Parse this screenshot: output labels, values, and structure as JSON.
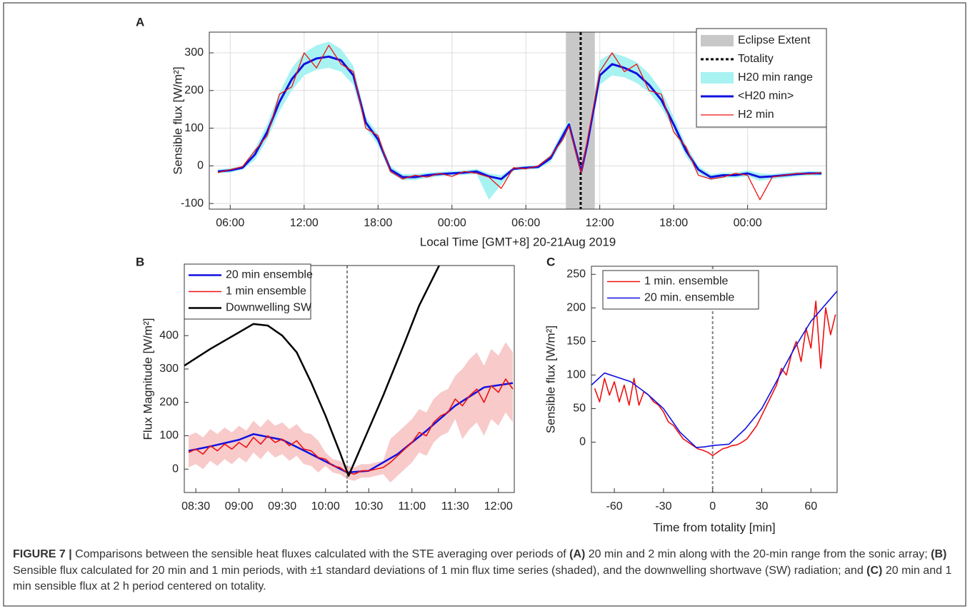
{
  "chart_data": [
    {
      "type": "line",
      "panel_label": "A",
      "ylabel": "Sensible flux [W/m²]",
      "xlabel": "Local Time [GMT+8] 20-21Aug 2019",
      "xlim": [
        4.3,
        54.4
      ],
      "ylim": [
        -115,
        355
      ],
      "grid": true,
      "legend": "upper right",
      "xticks": [
        {
          "value": 6,
          "label": "06:00"
        },
        {
          "value": 12,
          "label": "12:00"
        },
        {
          "value": 18,
          "label": "18:00"
        },
        {
          "value": 24,
          "label": "00:00"
        },
        {
          "value": 30,
          "label": "06:00"
        },
        {
          "value": 36,
          "label": "12:00"
        },
        {
          "value": 42,
          "label": "18:00"
        },
        {
          "value": 48,
          "label": "00:00"
        }
      ],
      "yticks": [
        -100,
        0,
        100,
        200,
        300
      ],
      "series": [
        {
          "name": "Eclipse Extent",
          "kind": "span",
          "color": "#c8c8c8",
          "x": [
            33.25,
            35.6
          ]
        },
        {
          "name": "Totality",
          "kind": "vline",
          "color": "#000000",
          "dashed": true,
          "linewidth": 3,
          "x": [
            34.45
          ]
        },
        {
          "name": "H20 min range",
          "kind": "band",
          "color": "#a9f2f2",
          "x": [
            5,
            6,
            7,
            8,
            9,
            10,
            11,
            12,
            13,
            14,
            15,
            16,
            17,
            18,
            19,
            20,
            21,
            22,
            23,
            24,
            25,
            26,
            27,
            28,
            29,
            30,
            31,
            32,
            33,
            33.5,
            34.5,
            35,
            36,
            37,
            38,
            39,
            40,
            41,
            42,
            43,
            44,
            45,
            46,
            47,
            48,
            49,
            50,
            51,
            52,
            53,
            54
          ],
          "lower": [
            -20,
            -18,
            -10,
            15,
            70,
            145,
            200,
            240,
            255,
            260,
            250,
            215,
            100,
            55,
            -20,
            -38,
            -38,
            -32,
            -28,
            -26,
            -24,
            -22,
            -90,
            -50,
            -12,
            -10,
            -8,
            10,
            65,
            95,
            -20,
            45,
            215,
            240,
            235,
            220,
            195,
            155,
            95,
            25,
            -20,
            -38,
            -32,
            -32,
            -28,
            -40,
            -35,
            -32,
            -28,
            -26,
            -26
          ],
          "upper": [
            -10,
            -6,
            0,
            45,
            110,
            195,
            260,
            300,
            320,
            330,
            310,
            265,
            130,
            85,
            0,
            -22,
            -22,
            -18,
            -16,
            -14,
            -12,
            -8,
            -20,
            -25,
            -4,
            0,
            2,
            30,
            95,
            120,
            -10,
            75,
            280,
            300,
            290,
            275,
            245,
            200,
            130,
            55,
            0,
            -22,
            -18,
            -18,
            -12,
            -20,
            -22,
            -18,
            -16,
            -14,
            -14
          ]
        },
        {
          "name": "<H20 min>",
          "kind": "line",
          "color": "#1010e0",
          "linewidth": 3,
          "x": [
            5,
            6,
            7,
            8,
            9,
            10,
            11,
            12,
            13,
            14,
            15,
            16,
            17,
            18,
            19,
            20,
            21,
            22,
            23,
            24,
            25,
            26,
            27,
            28,
            29,
            30,
            31,
            32,
            33,
            33.5,
            34.5,
            35,
            36,
            37,
            38,
            39,
            40,
            41,
            42,
            43,
            44,
            45,
            46,
            47,
            48,
            49,
            50,
            51,
            52,
            53,
            54
          ],
          "values": [
            -15,
            -12,
            -5,
            30,
            90,
            170,
            230,
            270,
            285,
            290,
            280,
            240,
            115,
            70,
            -10,
            -30,
            -30,
            -25,
            -22,
            -20,
            -18,
            -15,
            -28,
            -35,
            -8,
            -5,
            -3,
            20,
            80,
            110,
            -15,
            60,
            240,
            270,
            260,
            245,
            215,
            175,
            110,
            40,
            -10,
            -30,
            -25,
            -25,
            -20,
            -30,
            -28,
            -25,
            -22,
            -20,
            -20
          ]
        },
        {
          "name": "H2 min",
          "kind": "line",
          "color": "#ee1111",
          "linewidth": 1.3,
          "x": [
            5,
            6,
            7,
            8,
            9,
            10,
            11,
            12,
            13,
            14,
            15,
            16,
            17,
            18,
            19,
            20,
            21,
            22,
            23,
            24,
            25,
            26,
            27,
            28,
            29,
            30,
            31,
            32,
            33,
            33.5,
            34.5,
            35,
            36,
            37,
            38,
            39,
            40,
            41,
            42,
            43,
            44,
            45,
            46,
            47,
            48,
            49,
            50,
            51,
            52,
            53,
            54
          ],
          "values": [
            -18,
            -10,
            -2,
            40,
            80,
            190,
            210,
            300,
            260,
            320,
            270,
            250,
            100,
            80,
            -15,
            -35,
            -25,
            -30,
            -20,
            -28,
            -15,
            -20,
            -30,
            -60,
            -5,
            -8,
            0,
            25,
            70,
            105,
            -18,
            70,
            250,
            300,
            250,
            270,
            200,
            190,
            90,
            50,
            -25,
            -35,
            -30,
            -20,
            -25,
            -90,
            -30,
            -25,
            -20,
            -22,
            -18
          ]
        }
      ]
    },
    {
      "type": "line",
      "panel_label": "B",
      "ylabel": "Flux Magnitude [W/m²]",
      "xlim": [
        502,
        731
      ],
      "ylim": [
        -70,
        610
      ],
      "grid": false,
      "legend": "upper left",
      "xticks": [
        {
          "value": 510,
          "label": "08:30"
        },
        {
          "value": 540,
          "label": "09:00"
        },
        {
          "value": 570,
          "label": "09:30"
        },
        {
          "value": 600,
          "label": "10:00"
        },
        {
          "value": 630,
          "label": "10:30"
        },
        {
          "value": 660,
          "label": "11:00"
        },
        {
          "value": 690,
          "label": "11:30"
        },
        {
          "value": 720,
          "label": "12:00"
        }
      ],
      "yticks": [
        0,
        100,
        200,
        300,
        400
      ],
      "series": [
        {
          "kind": "band",
          "color": "#f8caca",
          "x": [
            505,
            510,
            515,
            520,
            525,
            530,
            535,
            540,
            545,
            550,
            555,
            560,
            565,
            570,
            575,
            580,
            585,
            590,
            595,
            600,
            605,
            610,
            615,
            620,
            625,
            630,
            635,
            640,
            645,
            650,
            655,
            660,
            665,
            670,
            675,
            680,
            685,
            690,
            695,
            700,
            705,
            710,
            715,
            720,
            725,
            730
          ],
          "lower": [
            5,
            15,
            0,
            25,
            10,
            30,
            15,
            35,
            20,
            50,
            30,
            55,
            35,
            45,
            25,
            40,
            15,
            10,
            -10,
            10,
            -10,
            -15,
            -30,
            -35,
            -25,
            -25,
            -20,
            -15,
            -40,
            -20,
            0,
            20,
            50,
            40,
            80,
            100,
            110,
            150,
            90,
            120,
            140,
            100,
            150,
            130,
            170,
            140
          ],
          "upper": [
            100,
            110,
            95,
            120,
            105,
            125,
            110,
            130,
            115,
            145,
            125,
            150,
            130,
            140,
            120,
            135,
            110,
            105,
            85,
            50,
            30,
            25,
            10,
            5,
            15,
            15,
            20,
            25,
            90,
            110,
            130,
            150,
            180,
            170,
            210,
            230,
            240,
            280,
            300,
            330,
            350,
            310,
            360,
            340,
            380,
            350
          ]
        },
        {
          "kind": "vline",
          "color": "#808080",
          "dashed": true,
          "linewidth": 2,
          "x": [
            615
          ]
        },
        {
          "name": "20 min ensemble",
          "kind": "line",
          "color": "#1010e0",
          "linewidth": 2.5,
          "x": [
            505,
            520,
            540,
            550,
            570,
            590,
            615,
            630,
            650,
            670,
            690,
            710,
            730
          ],
          "values": [
            55,
            68,
            88,
            105,
            88,
            45,
            -10,
            -5,
            45,
            115,
            190,
            245,
            258
          ]
        },
        {
          "name": "1 min ensemble",
          "kind": "line",
          "color": "#ee1111",
          "linewidth": 1.6,
          "x": [
            505,
            510,
            515,
            520,
            525,
            530,
            535,
            540,
            545,
            550,
            555,
            560,
            565,
            570,
            575,
            580,
            585,
            590,
            595,
            600,
            605,
            610,
            615,
            620,
            625,
            630,
            635,
            640,
            645,
            650,
            655,
            660,
            665,
            670,
            675,
            680,
            685,
            690,
            695,
            700,
            705,
            710,
            715,
            720,
            725,
            730
          ],
          "values": [
            50,
            60,
            45,
            70,
            55,
            75,
            60,
            80,
            65,
            95,
            75,
            100,
            80,
            90,
            70,
            85,
            60,
            55,
            35,
            30,
            10,
            5,
            -10,
            -15,
            -5,
            -5,
            0,
            5,
            20,
            40,
            60,
            80,
            110,
            100,
            140,
            160,
            170,
            210,
            190,
            220,
            240,
            200,
            250,
            230,
            270,
            240
          ]
        },
        {
          "name": "Downwelling SW",
          "kind": "line",
          "color": "#000000",
          "linewidth": 2.5,
          "x": [
            502,
            520,
            540,
            550,
            560,
            570,
            580,
            590,
            600,
            610,
            616,
            625,
            640,
            655,
            665,
            680
          ],
          "values": [
            310,
            360,
            410,
            435,
            430,
            400,
            350,
            260,
            160,
            50,
            -20,
            70,
            220,
            380,
            490,
            620
          ]
        }
      ]
    },
    {
      "type": "line",
      "panel_label": "C",
      "ylabel": "Sensible flux [W/m²]",
      "xlabel": "Time from totality [min]",
      "xlim": [
        -74,
        76
      ],
      "ylim": [
        -75,
        262
      ],
      "grid": false,
      "legend": "upper left",
      "xticks": [
        -60,
        -30,
        0,
        30,
        60
      ],
      "yticks": [
        0,
        50,
        100,
        150,
        200,
        250
      ],
      "series": [
        {
          "kind": "vline",
          "color": "#808080",
          "dashed": true,
          "linewidth": 2,
          "x": [
            0
          ]
        },
        {
          "name": "1 min. ensemble",
          "kind": "line",
          "color": "#ee1111",
          "linewidth": 1.6,
          "x": [
            -72,
            -69,
            -66,
            -63,
            -60,
            -57,
            -54,
            -51,
            -48,
            -45,
            -42,
            -39,
            -36,
            -33,
            -30,
            -27,
            -24,
            -21,
            -18,
            -15,
            -12,
            -9,
            -6,
            -3,
            0,
            3,
            6,
            9,
            12,
            15,
            18,
            21,
            24,
            27,
            30,
            33,
            36,
            39,
            42,
            45,
            48,
            51,
            54,
            57,
            60,
            63,
            66,
            69,
            72,
            75
          ],
          "values": [
            80,
            60,
            95,
            70,
            90,
            60,
            85,
            55,
            95,
            55,
            75,
            70,
            60,
            55,
            45,
            30,
            25,
            15,
            5,
            0,
            -5,
            -10,
            -12,
            -15,
            -20,
            -15,
            -10,
            -8,
            -5,
            -4,
            0,
            5,
            15,
            25,
            40,
            55,
            70,
            85,
            110,
            100,
            130,
            150,
            120,
            170,
            140,
            210,
            110,
            200,
            160,
            190
          ]
        },
        {
          "name": "20 min. ensemble",
          "kind": "line",
          "color": "#1010e0",
          "linewidth": 1.6,
          "x": [
            -74,
            -66,
            -50,
            -40,
            -30,
            -20,
            -10,
            -5,
            0,
            10,
            20,
            30,
            40,
            50,
            60,
            76
          ],
          "values": [
            85,
            103,
            90,
            72,
            50,
            15,
            -8,
            -7,
            -5,
            -3,
            20,
            50,
            95,
            140,
            180,
            225
          ]
        }
      ]
    }
  ],
  "caption": {
    "segments": [
      {
        "text": "FIGURE 7 |",
        "bold": true
      },
      {
        "text": " Comparisons between the sensible heat fluxes calculated with the STE averaging over periods of ",
        "bold": false
      },
      {
        "text": "(A)",
        "bold": true
      },
      {
        "text": " 20 min and 2 min along with the 20-min range from the sonic array; ",
        "bold": false
      },
      {
        "text": "(B)",
        "bold": true
      },
      {
        "text": " Sensible flux calculated for 20 min and 1 min periods, with ±1 standard deviations of 1 min flux time series (shaded), and the downwelling shortwave (SW) radiation; and ",
        "bold": false
      },
      {
        "text": "(C)",
        "bold": true
      },
      {
        "text": " 20 min and 1 min sensible flux at 2 h period centered on totality.",
        "bold": false
      }
    ]
  }
}
